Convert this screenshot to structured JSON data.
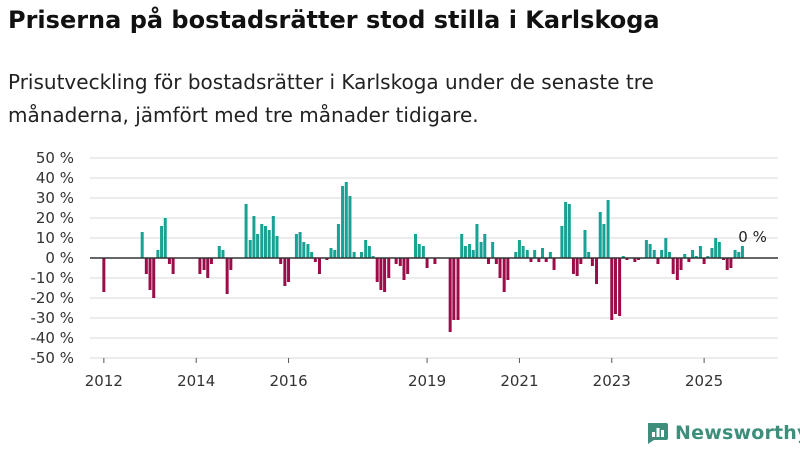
{
  "header": {
    "title": "Priserna på bostadsrätter stod stilla i Karlskoga",
    "subtitle": "Prisutveckling för bostadsrätter i Karlskoga under de senaste tre månaderna, jämfört med tre månader tidigare."
  },
  "brand": {
    "name": "Newsworthy",
    "icon": "newsworthy-logo-icon"
  },
  "colors": {
    "positive": "#16a394",
    "negative": "#9c0c48",
    "grid": "#d9d9d9",
    "axis": "#333333"
  },
  "chart_data": {
    "type": "bar",
    "title": "Priserna på bostadsrätter stod stilla i Karlskoga",
    "ylabel": "",
    "xlabel": "",
    "ylim": [
      -50,
      50
    ],
    "y_ticks": [
      50,
      40,
      30,
      20,
      10,
      0,
      -10,
      -20,
      -30,
      -40,
      -50
    ],
    "y_tick_labels": [
      "50 %",
      "40 %",
      "30 %",
      "20 %",
      "10 %",
      "0 %",
      "-10 %",
      "-20 %",
      "-30 %",
      "-40 %",
      "-50 %"
    ],
    "x_ticks": [
      {
        "label": "2012",
        "year": 2012
      },
      {
        "label": "2014",
        "year": 2014
      },
      {
        "label": "2016",
        "year": 2016
      },
      {
        "label": "2019",
        "year": 2019
      },
      {
        "label": "2021",
        "year": 2021
      },
      {
        "label": "2023",
        "year": 2023
      },
      {
        "label": "2025",
        "year": 2025
      }
    ],
    "last_value_label": "0 %",
    "series": [
      {
        "name": "Prisutveckling (%)",
        "points": [
          {
            "t": 2012.0,
            "v": -17
          },
          {
            "t": 2012.83,
            "v": 13
          },
          {
            "t": 2012.92,
            "v": -8
          },
          {
            "t": 2013.0,
            "v": -16
          },
          {
            "t": 2013.08,
            "v": -20
          },
          {
            "t": 2013.17,
            "v": 4
          },
          {
            "t": 2013.25,
            "v": 16
          },
          {
            "t": 2013.33,
            "v": 20
          },
          {
            "t": 2013.42,
            "v": -3
          },
          {
            "t": 2013.5,
            "v": -8
          },
          {
            "t": 2014.08,
            "v": -8
          },
          {
            "t": 2014.17,
            "v": -6
          },
          {
            "t": 2014.25,
            "v": -10
          },
          {
            "t": 2014.33,
            "v": -3
          },
          {
            "t": 2014.5,
            "v": 6
          },
          {
            "t": 2014.58,
            "v": 4
          },
          {
            "t": 2014.67,
            "v": -18
          },
          {
            "t": 2014.75,
            "v": -6
          },
          {
            "t": 2015.08,
            "v": 27
          },
          {
            "t": 2015.17,
            "v": 9
          },
          {
            "t": 2015.25,
            "v": 21
          },
          {
            "t": 2015.33,
            "v": 12
          },
          {
            "t": 2015.42,
            "v": 17
          },
          {
            "t": 2015.5,
            "v": 16
          },
          {
            "t": 2015.58,
            "v": 14
          },
          {
            "t": 2015.67,
            "v": 21
          },
          {
            "t": 2015.75,
            "v": 11
          },
          {
            "t": 2015.83,
            "v": -3
          },
          {
            "t": 2015.92,
            "v": -14
          },
          {
            "t": 2016.0,
            "v": -12
          },
          {
            "t": 2016.17,
            "v": 12
          },
          {
            "t": 2016.25,
            "v": 13
          },
          {
            "t": 2016.33,
            "v": 8
          },
          {
            "t": 2016.42,
            "v": 7
          },
          {
            "t": 2016.5,
            "v": 3
          },
          {
            "t": 2016.58,
            "v": -2
          },
          {
            "t": 2016.67,
            "v": -8
          },
          {
            "t": 2016.83,
            "v": -1
          },
          {
            "t": 2016.92,
            "v": 5
          },
          {
            "t": 2017.0,
            "v": 4
          },
          {
            "t": 2017.08,
            "v": 17
          },
          {
            "t": 2017.17,
            "v": 36
          },
          {
            "t": 2017.25,
            "v": 38
          },
          {
            "t": 2017.33,
            "v": 31
          },
          {
            "t": 2017.42,
            "v": 3
          },
          {
            "t": 2017.58,
            "v": 3
          },
          {
            "t": 2017.67,
            "v": 9
          },
          {
            "t": 2017.75,
            "v": 6
          },
          {
            "t": 2017.83,
            "v": 1
          },
          {
            "t": 2017.92,
            "v": -12
          },
          {
            "t": 2018.0,
            "v": -16
          },
          {
            "t": 2018.08,
            "v": -17
          },
          {
            "t": 2018.17,
            "v": -10
          },
          {
            "t": 2018.33,
            "v": -3
          },
          {
            "t": 2018.42,
            "v": -4
          },
          {
            "t": 2018.5,
            "v": -11
          },
          {
            "t": 2018.58,
            "v": -8
          },
          {
            "t": 2018.75,
            "v": 12
          },
          {
            "t": 2018.83,
            "v": 7
          },
          {
            "t": 2018.92,
            "v": 6
          },
          {
            "t": 2019.0,
            "v": -5
          },
          {
            "t": 2019.17,
            "v": -3
          },
          {
            "t": 2019.5,
            "v": -37
          },
          {
            "t": 2019.58,
            "v": -31
          },
          {
            "t": 2019.67,
            "v": -31
          },
          {
            "t": 2019.75,
            "v": 12
          },
          {
            "t": 2019.83,
            "v": 6
          },
          {
            "t": 2019.92,
            "v": 7
          },
          {
            "t": 2020.0,
            "v": 4
          },
          {
            "t": 2020.08,
            "v": 17
          },
          {
            "t": 2020.17,
            "v": 8
          },
          {
            "t": 2020.25,
            "v": 12
          },
          {
            "t": 2020.33,
            "v": -3
          },
          {
            "t": 2020.42,
            "v": 8
          },
          {
            "t": 2020.5,
            "v": -3
          },
          {
            "t": 2020.58,
            "v": -10
          },
          {
            "t": 2020.67,
            "v": -17
          },
          {
            "t": 2020.75,
            "v": -11
          },
          {
            "t": 2020.92,
            "v": 3
          },
          {
            "t": 2021.0,
            "v": 9
          },
          {
            "t": 2021.08,
            "v": 6
          },
          {
            "t": 2021.17,
            "v": 4
          },
          {
            "t": 2021.25,
            "v": -2
          },
          {
            "t": 2021.33,
            "v": 4
          },
          {
            "t": 2021.42,
            "v": -2
          },
          {
            "t": 2021.5,
            "v": 5
          },
          {
            "t": 2021.58,
            "v": -2
          },
          {
            "t": 2021.67,
            "v": 3
          },
          {
            "t": 2021.75,
            "v": -6
          },
          {
            "t": 2021.92,
            "v": 16
          },
          {
            "t": 2022.0,
            "v": 28
          },
          {
            "t": 2022.08,
            "v": 27
          },
          {
            "t": 2022.17,
            "v": -8
          },
          {
            "t": 2022.25,
            "v": -9
          },
          {
            "t": 2022.33,
            "v": -3
          },
          {
            "t": 2022.42,
            "v": 14
          },
          {
            "t": 2022.5,
            "v": 3
          },
          {
            "t": 2022.58,
            "v": -4
          },
          {
            "t": 2022.67,
            "v": -13
          },
          {
            "t": 2022.75,
            "v": 23
          },
          {
            "t": 2022.83,
            "v": 17
          },
          {
            "t": 2022.92,
            "v": 29
          },
          {
            "t": 2023.0,
            "v": -31
          },
          {
            "t": 2023.08,
            "v": -28
          },
          {
            "t": 2023.17,
            "v": -29
          },
          {
            "t": 2023.25,
            "v": 1
          },
          {
            "t": 2023.33,
            "v": -1
          },
          {
            "t": 2023.5,
            "v": -2
          },
          {
            "t": 2023.58,
            "v": -1
          },
          {
            "t": 2023.75,
            "v": 9
          },
          {
            "t": 2023.83,
            "v": 7
          },
          {
            "t": 2023.92,
            "v": 4
          },
          {
            "t": 2024.0,
            "v": -3
          },
          {
            "t": 2024.08,
            "v": 4
          },
          {
            "t": 2024.17,
            "v": 10
          },
          {
            "t": 2024.25,
            "v": 3
          },
          {
            "t": 2024.33,
            "v": -8
          },
          {
            "t": 2024.42,
            "v": -11
          },
          {
            "t": 2024.5,
            "v": -6
          },
          {
            "t": 2024.58,
            "v": 2
          },
          {
            "t": 2024.67,
            "v": -2
          },
          {
            "t": 2024.75,
            "v": 4
          },
          {
            "t": 2024.83,
            "v": 1
          },
          {
            "t": 2024.92,
            "v": 6
          },
          {
            "t": 2025.0,
            "v": -3
          },
          {
            "t": 2025.08,
            "v": 1
          },
          {
            "t": 2025.17,
            "v": 5
          },
          {
            "t": 2025.25,
            "v": 10
          },
          {
            "t": 2025.33,
            "v": 8
          },
          {
            "t": 2025.42,
            "v": -1
          },
          {
            "t": 2025.5,
            "v": -6
          },
          {
            "t": 2025.58,
            "v": -5
          },
          {
            "t": 2025.67,
            "v": 4
          },
          {
            "t": 2025.75,
            "v": 3
          },
          {
            "t": 2025.83,
            "v": 6
          },
          {
            "t": 2025.92,
            "v": 0
          }
        ]
      }
    ]
  }
}
